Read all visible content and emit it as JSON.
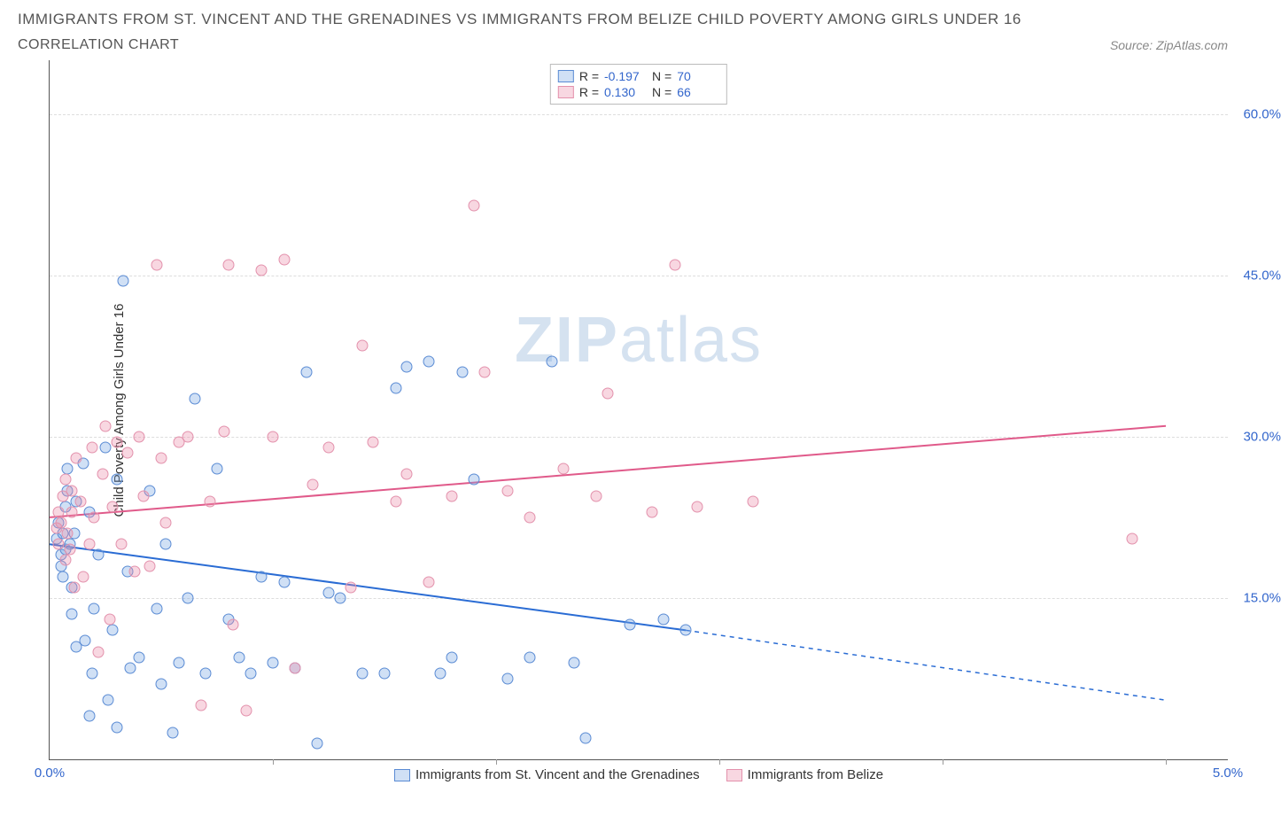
{
  "title": "IMMIGRANTS FROM ST. VINCENT AND THE GRENADINES VS IMMIGRANTS FROM BELIZE CHILD POVERTY AMONG GIRLS UNDER 16",
  "subtitle": "CORRELATION CHART",
  "source": "Source: ZipAtlas.com",
  "y_axis_label": "Child Poverty Among Girls Under 16",
  "watermark_a": "ZIP",
  "watermark_b": "atlas",
  "chart": {
    "type": "scatter",
    "background_color": "#ffffff",
    "grid_color": "#dddddd",
    "axis_color": "#555555",
    "xlim": [
      0.0,
      5.0
    ],
    "ylim": [
      0.0,
      65.0
    ],
    "y_gridlines": [
      15.0,
      30.0,
      45.0,
      60.0
    ],
    "y_tick_labels": [
      "15.0%",
      "30.0%",
      "45.0%",
      "60.0%"
    ],
    "x_ticks": [
      1.0,
      2.0,
      3.0,
      4.0,
      5.0
    ],
    "x_min_label": "0.0%",
    "x_max_label": "5.0%",
    "point_radius": 6.5,
    "series": [
      {
        "name": "Immigrants from St. Vincent and the Grenadines",
        "color_fill": "rgba(120,165,225,0.35)",
        "color_stroke": "#5a8bd4",
        "trend_color": "#2a6cd4",
        "R": "-0.197",
        "N": "70",
        "trend": {
          "x1": 0.0,
          "y1": 20.0,
          "x2_solid": 2.85,
          "y2_solid": 12.0,
          "x2": 5.0,
          "y2": 5.5
        },
        "points": [
          [
            0.03,
            20.5
          ],
          [
            0.04,
            22.0
          ],
          [
            0.05,
            19.0
          ],
          [
            0.05,
            18.0
          ],
          [
            0.06,
            21.0
          ],
          [
            0.06,
            17.0
          ],
          [
            0.07,
            23.5
          ],
          [
            0.07,
            19.5
          ],
          [
            0.08,
            27.0
          ],
          [
            0.08,
            25.0
          ],
          [
            0.09,
            20.0
          ],
          [
            0.1,
            16.0
          ],
          [
            0.1,
            13.5
          ],
          [
            0.11,
            21.0
          ],
          [
            0.12,
            24.0
          ],
          [
            0.12,
            10.5
          ],
          [
            0.15,
            27.5
          ],
          [
            0.16,
            11.0
          ],
          [
            0.18,
            23.0
          ],
          [
            0.18,
            4.0
          ],
          [
            0.19,
            8.0
          ],
          [
            0.2,
            14.0
          ],
          [
            0.22,
            19.0
          ],
          [
            0.25,
            29.0
          ],
          [
            0.26,
            5.5
          ],
          [
            0.28,
            12.0
          ],
          [
            0.3,
            26.0
          ],
          [
            0.3,
            3.0
          ],
          [
            0.33,
            44.5
          ],
          [
            0.35,
            17.5
          ],
          [
            0.36,
            8.5
          ],
          [
            0.4,
            9.5
          ],
          [
            0.45,
            25.0
          ],
          [
            0.48,
            14.0
          ],
          [
            0.5,
            7.0
          ],
          [
            0.52,
            20.0
          ],
          [
            0.55,
            2.5
          ],
          [
            0.58,
            9.0
          ],
          [
            0.62,
            15.0
          ],
          [
            0.65,
            33.5
          ],
          [
            0.7,
            8.0
          ],
          [
            0.75,
            27.0
          ],
          [
            0.8,
            13.0
          ],
          [
            0.85,
            9.5
          ],
          [
            0.9,
            8.0
          ],
          [
            0.95,
            17.0
          ],
          [
            1.0,
            9.0
          ],
          [
            1.05,
            16.5
          ],
          [
            1.1,
            8.5
          ],
          [
            1.15,
            36.0
          ],
          [
            1.2,
            1.5
          ],
          [
            1.25,
            15.5
          ],
          [
            1.3,
            15.0
          ],
          [
            1.4,
            8.0
          ],
          [
            1.5,
            8.0
          ],
          [
            1.55,
            34.5
          ],
          [
            1.6,
            36.5
          ],
          [
            1.7,
            37.0
          ],
          [
            1.75,
            8.0
          ],
          [
            1.8,
            9.5
          ],
          [
            1.85,
            36.0
          ],
          [
            1.9,
            26.0
          ],
          [
            2.05,
            7.5
          ],
          [
            2.15,
            9.5
          ],
          [
            2.25,
            37.0
          ],
          [
            2.35,
            9.0
          ],
          [
            2.4,
            2.0
          ],
          [
            2.6,
            12.5
          ],
          [
            2.75,
            13.0
          ],
          [
            2.85,
            12.0
          ]
        ]
      },
      {
        "name": "Immigrants from Belize",
        "color_fill": "rgba(235,140,170,0.35)",
        "color_stroke": "#e391ac",
        "trend_color": "#e05a8a",
        "R": "0.130",
        "N": "66",
        "trend": {
          "x1": 0.0,
          "y1": 22.5,
          "x2_solid": 5.0,
          "y2_solid": 31.0,
          "x2": 5.0,
          "y2": 31.0
        },
        "points": [
          [
            0.03,
            21.5
          ],
          [
            0.04,
            23.0
          ],
          [
            0.04,
            20.0
          ],
          [
            0.05,
            22.0
          ],
          [
            0.06,
            24.5
          ],
          [
            0.07,
            18.5
          ],
          [
            0.07,
            26.0
          ],
          [
            0.08,
            21.0
          ],
          [
            0.09,
            19.5
          ],
          [
            0.1,
            25.0
          ],
          [
            0.1,
            23.0
          ],
          [
            0.11,
            16.0
          ],
          [
            0.12,
            28.0
          ],
          [
            0.14,
            24.0
          ],
          [
            0.15,
            17.0
          ],
          [
            0.18,
            20.0
          ],
          [
            0.19,
            29.0
          ],
          [
            0.2,
            22.5
          ],
          [
            0.22,
            10.0
          ],
          [
            0.24,
            26.5
          ],
          [
            0.25,
            31.0
          ],
          [
            0.27,
            13.0
          ],
          [
            0.28,
            23.5
          ],
          [
            0.3,
            29.5
          ],
          [
            0.32,
            20.0
          ],
          [
            0.35,
            28.5
          ],
          [
            0.38,
            17.5
          ],
          [
            0.4,
            30.0
          ],
          [
            0.42,
            24.5
          ],
          [
            0.45,
            18.0
          ],
          [
            0.48,
            46.0
          ],
          [
            0.5,
            28.0
          ],
          [
            0.52,
            22.0
          ],
          [
            0.58,
            29.5
          ],
          [
            0.62,
            30.0
          ],
          [
            0.68,
            5.0
          ],
          [
            0.72,
            24.0
          ],
          [
            0.78,
            30.5
          ],
          [
            0.8,
            46.0
          ],
          [
            0.82,
            12.5
          ],
          [
            0.88,
            4.5
          ],
          [
            0.95,
            45.5
          ],
          [
            1.0,
            30.0
          ],
          [
            1.05,
            46.5
          ],
          [
            1.1,
            8.5
          ],
          [
            1.18,
            25.5
          ],
          [
            1.25,
            29.0
          ],
          [
            1.35,
            16.0
          ],
          [
            1.4,
            38.5
          ],
          [
            1.55,
            24.0
          ],
          [
            1.6,
            26.5
          ],
          [
            1.7,
            16.5
          ],
          [
            1.8,
            24.5
          ],
          [
            1.9,
            51.5
          ],
          [
            1.95,
            36.0
          ],
          [
            2.05,
            25.0
          ],
          [
            2.15,
            22.5
          ],
          [
            2.3,
            27.0
          ],
          [
            2.45,
            24.5
          ],
          [
            2.5,
            34.0
          ],
          [
            2.7,
            23.0
          ],
          [
            2.8,
            46.0
          ],
          [
            2.9,
            23.5
          ],
          [
            3.15,
            24.0
          ],
          [
            4.85,
            20.5
          ],
          [
            1.45,
            29.5
          ]
        ]
      }
    ]
  },
  "legend_bottom": [
    "Immigrants from St. Vincent and the Grenadines",
    "Immigrants from Belize"
  ]
}
